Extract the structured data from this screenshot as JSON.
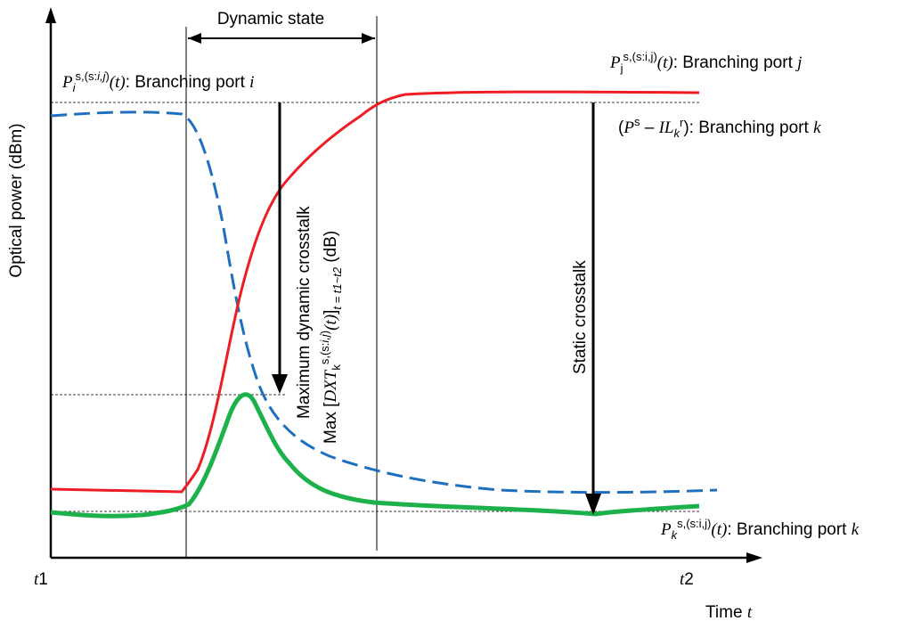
{
  "diagram": {
    "y_axis_label": "Optical power (dBm)",
    "x_axis_label": "Time",
    "x_axis_var": "t",
    "t1_label": "t",
    "t1_num": "1",
    "t2_label": "t",
    "t2_num": "2",
    "dynamic_state": "Dynamic state",
    "port_i": {
      "P": "P",
      "sub": "i",
      "sup": "s,(s:",
      "sup_ij": "i,j",
      "sup_end": ")",
      "t": "(t)",
      "text": ": Branching port ",
      "port": "i"
    },
    "port_j": {
      "P": "P",
      "sub": "j",
      "sup": "s,(s:i,j)",
      "t": "(t)",
      "text": ": Branching port ",
      "port": "j"
    },
    "port_k_ref": {
      "open": "(",
      "P": "P",
      "sup": "s",
      "minus": " – ",
      "IL": "IL",
      "sub": "k",
      "sup2": "r",
      "close": "): Branching port ",
      "port": "k"
    },
    "port_k": {
      "P": "P",
      "sub": "k",
      "sup": "s,(s:i,j)",
      "t": "(t)",
      "text": ": Branching port ",
      "port": "k"
    },
    "max_crosstalk_line1": "Maximum dynamic crosstalk",
    "max_crosstalk_line2": {
      "max": "Max [",
      "DXT": "DXT",
      "sub": "k",
      "sup": "s,(s:",
      "sup_ij": "i,j",
      "sup_end": ")",
      "t": "(t)",
      "close": "]",
      "range": "t = t1~t2",
      "unit": " (dB)"
    },
    "static_crosstalk": "Static crosstalk",
    "colors": {
      "red_curve": "#ee1c24",
      "blue_dashed_curve": "#1f6fbf",
      "green_curve": "#1db14b",
      "axis": "#000000"
    }
  }
}
